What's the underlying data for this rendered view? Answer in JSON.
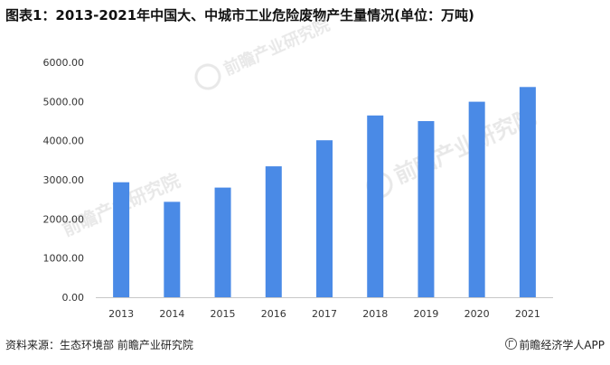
{
  "title": "图表1：2013-2021年中国大、中城市工业危险废物产生量情况(单位：万吨)",
  "footer": {
    "source": "资料来源：生态环境部 前瞻产业研究院",
    "brand": "前瞻经济学人APP"
  },
  "watermark": {
    "text": "前瞻产业研究院"
  },
  "colors": {
    "bar": "#4a8ae6",
    "axis": "#c8c8c8",
    "text": "#333333",
    "watermark": "#d9d9d9"
  },
  "chart_data": {
    "type": "bar",
    "categories": [
      "2013",
      "2014",
      "2015",
      "2016",
      "2017",
      "2018",
      "2019",
      "2020",
      "2021"
    ],
    "values": [
      2937,
      2437,
      2801,
      3344,
      4010,
      4643,
      4499,
      4994,
      5370
    ],
    "ylim": [
      0,
      6000
    ],
    "yticks": [
      "0.00",
      "1000.00",
      "2000.00",
      "3000.00",
      "4000.00",
      "5000.00",
      "6000.00"
    ],
    "grid": false,
    "legend": "none"
  }
}
